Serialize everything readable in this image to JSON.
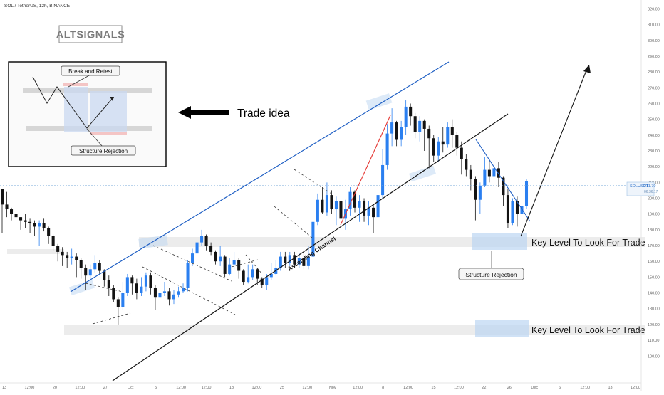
{
  "header": {
    "symbol": "SOL / TetherUS, 12h, BINANCE"
  },
  "brand": {
    "name": "ALTSIGNALS"
  },
  "annotations": {
    "trade_idea": "Trade idea",
    "break_and_retest": "Break and Retest",
    "structure_rejection_inset": "Structure Rejection",
    "ascending_channel": "Ascending Channel",
    "key_level_upper": "Key Level To Look For Trade",
    "key_level_lower": "Key Level To Look For Trade",
    "structure_rejection_main": "Structure Rejection"
  },
  "price_badge": {
    "symbol": "SOLUSDT",
    "price": "211.70",
    "timer": "06:36:17"
  },
  "colors": {
    "bull": "#2a7ff0",
    "bear": "#131313",
    "channel": "#1f5fc4",
    "trendline_red": "#e53935",
    "zone_grey": "#e3e3e3",
    "zone_blue": "#bcd6f2",
    "price_line": "#77a8d8"
  },
  "chart_data": {
    "type": "candlestick",
    "title": "SOL / TetherUS, 12h, BINANCE",
    "xlabel": "",
    "ylabel": "",
    "ylim": [
      92,
      322
    ],
    "y_ticks": [
      "320.00",
      "310.00",
      "300.00",
      "290.00",
      "280.00",
      "270.00",
      "260.00",
      "250.00",
      "240.00",
      "230.00",
      "220.00",
      "210.00",
      "200.00",
      "190.00",
      "180.00",
      "170.00",
      "160.00",
      "150.00",
      "140.00",
      "130.00",
      "120.00",
      "110.00",
      "100.00"
    ],
    "x_ticks": [
      "13",
      "12:00",
      "20",
      "12:00",
      "27",
      "Oct",
      "5",
      "12:00",
      "12:00",
      "18",
      "12:00",
      "25",
      "12:00",
      "Nov",
      "12:00",
      "8",
      "12:00",
      "15",
      "12:00",
      "22",
      "26",
      "Dec",
      "6",
      "12:00",
      "13",
      "12:00"
    ],
    "current_price": 211.7,
    "candles": [
      [
        206,
        196,
        200,
        178
      ],
      [
        196,
        193,
        204,
        188
      ],
      [
        193,
        190,
        194,
        186
      ],
      [
        190,
        188,
        192,
        184
      ],
      [
        188,
        186,
        188,
        180
      ],
      [
        186,
        185,
        190,
        181
      ],
      [
        185,
        184,
        187,
        178
      ],
      [
        184,
        182,
        186,
        176
      ],
      [
        182,
        184,
        186,
        170
      ],
      [
        184,
        181,
        187,
        179
      ],
      [
        181,
        176,
        182,
        171
      ],
      [
        176,
        170,
        177,
        167
      ],
      [
        170,
        166,
        171,
        160
      ],
      [
        166,
        164,
        169,
        157
      ],
      [
        164,
        162,
        166,
        156
      ],
      [
        162,
        163,
        168,
        158
      ],
      [
        163,
        161,
        165,
        150
      ],
      [
        161,
        156,
        162,
        149
      ],
      [
        156,
        151,
        158,
        142
      ],
      [
        151,
        155,
        158,
        149
      ],
      [
        155,
        159,
        164,
        153
      ],
      [
        159,
        154,
        161,
        152
      ],
      [
        154,
        148,
        155,
        144
      ],
      [
        148,
        143,
        151,
        138
      ],
      [
        143,
        136,
        145,
        134
      ],
      [
        136,
        131,
        137,
        120
      ],
      [
        131,
        140,
        147,
        129
      ],
      [
        140,
        150,
        152,
        138
      ],
      [
        150,
        146,
        151,
        139
      ],
      [
        146,
        140,
        149,
        136
      ],
      [
        140,
        144,
        150,
        138
      ],
      [
        144,
        151,
        153,
        141
      ],
      [
        151,
        143,
        153,
        139
      ],
      [
        143,
        137,
        145,
        129
      ],
      [
        137,
        140,
        142,
        133
      ],
      [
        140,
        141,
        147,
        138
      ],
      [
        141,
        136,
        143,
        132
      ],
      [
        136,
        139,
        142,
        133
      ],
      [
        139,
        141,
        144,
        137
      ],
      [
        141,
        143,
        146,
        140
      ],
      [
        143,
        159,
        161,
        141
      ],
      [
        159,
        165,
        168,
        157
      ],
      [
        165,
        172,
        174,
        163
      ],
      [
        172,
        176,
        180,
        170
      ],
      [
        176,
        170,
        177,
        167
      ],
      [
        170,
        166,
        172,
        164
      ],
      [
        166,
        160,
        167,
        158
      ],
      [
        160,
        163,
        170,
        157
      ],
      [
        163,
        152,
        164,
        150
      ],
      [
        152,
        158,
        162,
        151
      ],
      [
        158,
        161,
        166,
        155
      ],
      [
        161,
        154,
        162,
        149
      ],
      [
        154,
        147,
        155,
        145
      ],
      [
        147,
        150,
        158,
        146
      ],
      [
        150,
        155,
        158,
        148
      ],
      [
        155,
        149,
        156,
        145
      ],
      [
        149,
        145,
        150,
        143
      ],
      [
        145,
        150,
        152,
        142
      ],
      [
        150,
        152,
        159,
        148
      ],
      [
        152,
        156,
        161,
        151
      ],
      [
        156,
        163,
        166,
        154
      ],
      [
        163,
        159,
        166,
        156
      ],
      [
        159,
        164,
        166,
        157
      ],
      [
        164,
        158,
        166,
        156
      ],
      [
        158,
        162,
        165,
        156
      ],
      [
        162,
        157,
        165,
        155
      ],
      [
        157,
        163,
        170,
        155
      ],
      [
        163,
        185,
        188,
        161
      ],
      [
        185,
        199,
        203,
        183
      ],
      [
        199,
        191,
        207,
        190
      ],
      [
        191,
        202,
        210,
        189
      ],
      [
        202,
        193,
        205,
        190
      ],
      [
        193,
        198,
        201,
        183
      ],
      [
        198,
        187,
        203,
        184
      ],
      [
        187,
        193,
        199,
        180
      ],
      [
        193,
        204,
        207,
        189
      ],
      [
        204,
        194,
        205,
        191
      ],
      [
        194,
        198,
        202,
        185
      ],
      [
        198,
        189,
        200,
        185
      ],
      [
        189,
        194,
        198,
        183
      ],
      [
        194,
        188,
        196,
        178
      ],
      [
        188,
        202,
        204,
        185
      ],
      [
        202,
        221,
        231,
        200
      ],
      [
        221,
        241,
        247,
        218
      ],
      [
        241,
        248,
        257,
        233
      ],
      [
        248,
        237,
        249,
        233
      ],
      [
        237,
        245,
        249,
        233
      ],
      [
        245,
        258,
        262,
        240
      ],
      [
        258,
        252,
        260,
        246
      ],
      [
        252,
        242,
        254,
        238
      ],
      [
        242,
        249,
        252,
        236
      ],
      [
        249,
        244,
        250,
        230
      ],
      [
        244,
        238,
        246,
        219
      ],
      [
        238,
        227,
        240,
        223
      ],
      [
        227,
        236,
        239,
        223
      ],
      [
        236,
        234,
        245,
        229
      ],
      [
        234,
        245,
        248,
        232
      ],
      [
        245,
        240,
        250,
        232
      ],
      [
        240,
        232,
        242,
        227
      ],
      [
        232,
        225,
        236,
        215
      ],
      [
        225,
        218,
        228,
        214
      ],
      [
        218,
        212,
        221,
        205
      ],
      [
        212,
        199,
        214,
        186
      ],
      [
        199,
        208,
        210,
        190
      ],
      [
        208,
        218,
        226,
        207
      ],
      [
        218,
        214,
        225,
        210
      ],
      [
        214,
        219,
        225,
        213
      ],
      [
        219,
        213,
        223,
        207
      ],
      [
        213,
        202,
        214,
        195
      ],
      [
        202,
        184,
        206,
        181
      ],
      [
        184,
        198,
        200,
        183
      ],
      [
        198,
        190,
        201,
        182
      ],
      [
        190,
        195,
        198,
        181
      ],
      [
        195,
        211,
        212,
        193
      ]
    ],
    "zones": [
      {
        "name": "key-level-upper",
        "low": 174,
        "high": 181
      },
      {
        "name": "key-level-lower",
        "low": 122,
        "high": 129
      },
      {
        "name": "left-level",
        "low": 169,
        "high": 174
      }
    ]
  }
}
